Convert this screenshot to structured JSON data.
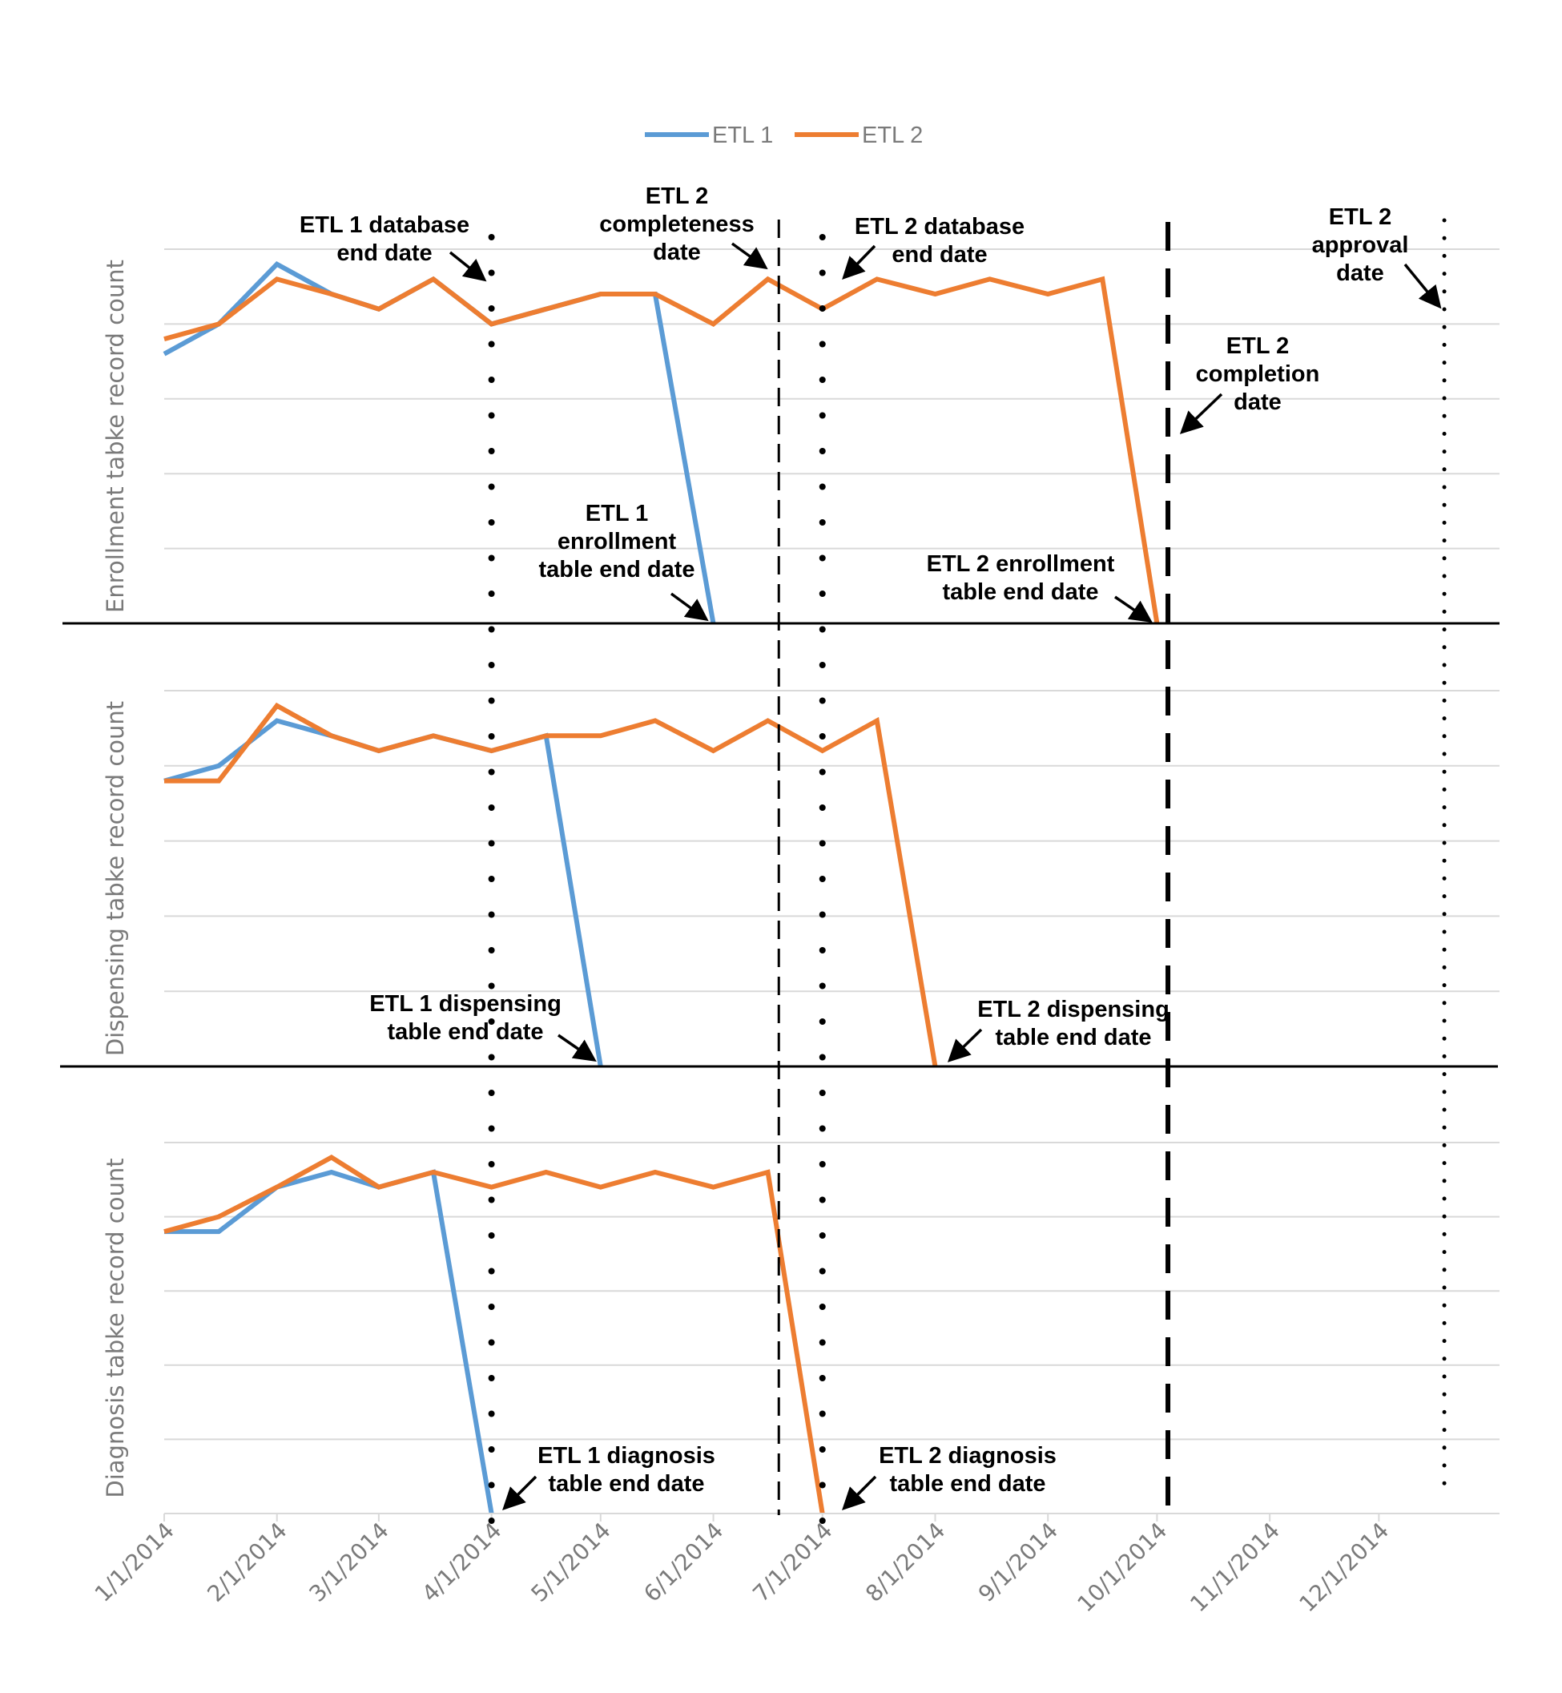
{
  "chart_data": {
    "type": "line",
    "legend": {
      "position": "top-center",
      "entries": [
        "ETL 1",
        "ETL 2"
      ]
    },
    "colors": {
      "ETL 1": "#5b9bd5",
      "ETL 2": "#ed7d31"
    },
    "x": [
      "1/1/2014",
      "1/16/2014",
      "2/1/2014",
      "2/16/2014",
      "3/1/2014",
      "3/16/2014",
      "4/1/2014",
      "4/16/2014",
      "5/1/2014",
      "5/16/2014",
      "6/1/2014",
      "6/16/2014",
      "7/1/2014",
      "7/16/2014",
      "8/1/2014",
      "8/16/2014",
      "9/1/2014",
      "9/16/2014",
      "10/1/2014"
    ],
    "x_tick_labels": [
      "1/1/2014",
      "2/1/2014",
      "3/1/2014",
      "4/1/2014",
      "5/1/2014",
      "6/1/2014",
      "7/1/2014",
      "8/1/2014",
      "9/1/2014",
      "10/1/2014",
      "11/1/2014",
      "12/1/2014"
    ],
    "panels": [
      {
        "ylabel": "Enrollment tabke record count",
        "ylim": [
          0,
          5
        ],
        "series": [
          {
            "name": "ETL 1",
            "values": [
              3.6,
              4.0,
              4.8,
              4.4,
              4.2,
              4.6,
              4.0,
              4.2,
              4.4,
              4.4,
              0.0,
              null,
              null,
              null,
              null,
              null,
              null,
              null,
              null
            ]
          },
          {
            "name": "ETL 2",
            "values": [
              3.8,
              4.0,
              4.6,
              4.4,
              4.2,
              4.6,
              4.0,
              4.2,
              4.4,
              4.4,
              4.0,
              4.6,
              4.2,
              4.6,
              4.4,
              4.6,
              4.4,
              4.6,
              0.0
            ]
          }
        ]
      },
      {
        "ylabel": "Dispensing tabke record count",
        "ylim": [
          0,
          5
        ],
        "series": [
          {
            "name": "ETL 1",
            "values": [
              3.8,
              4.0,
              4.6,
              4.4,
              4.2,
              4.4,
              4.2,
              4.4,
              0.0,
              null,
              null,
              null,
              null,
              null,
              null,
              null,
              null,
              null,
              null
            ]
          },
          {
            "name": "ETL 2",
            "values": [
              3.8,
              3.8,
              4.8,
              4.4,
              4.2,
              4.4,
              4.2,
              4.4,
              4.4,
              4.6,
              4.2,
              4.6,
              4.2,
              4.6,
              0.0,
              null,
              null,
              null,
              null
            ]
          }
        ]
      },
      {
        "ylabel": "Diagnosis tabke record count",
        "ylim": [
          0,
          5
        ],
        "series": [
          {
            "name": "ETL 1",
            "values": [
              3.8,
              3.8,
              4.4,
              4.6,
              4.4,
              4.6,
              0.0,
              null,
              null,
              null,
              null,
              null,
              null,
              null,
              null,
              null,
              null,
              null,
              null
            ]
          },
          {
            "name": "ETL 2",
            "values": [
              3.8,
              4.0,
              4.4,
              4.8,
              4.4,
              4.6,
              4.4,
              4.6,
              4.4,
              4.6,
              4.4,
              4.6,
              0.0,
              null,
              null,
              null,
              null,
              null,
              null
            ]
          }
        ]
      }
    ],
    "reference_lines": [
      {
        "x": "4/1/2014",
        "style": "large-dot"
      },
      {
        "x": "6/19/2014",
        "style": "dash"
      },
      {
        "x": "7/1/2014",
        "style": "large-dot"
      },
      {
        "x": "10/4/2014",
        "style": "long-dash"
      },
      {
        "x": "12/19/2014",
        "style": "small-dot"
      }
    ],
    "annotations": [
      {
        "lines": [
          "ETL 1 database",
          "end date"
        ]
      },
      {
        "lines": [
          "ETL 2",
          "completeness",
          "date"
        ]
      },
      {
        "lines": [
          "ETL 2 database",
          "end date"
        ]
      },
      {
        "lines": [
          "ETL 2",
          "approval",
          "date"
        ]
      },
      {
        "lines": [
          "ETL 2",
          "completion",
          "date"
        ]
      },
      {
        "lines": [
          "ETL 1",
          "enrollment",
          "table end date"
        ]
      },
      {
        "lines": [
          "ETL 2 enrollment",
          "table end date"
        ]
      },
      {
        "lines": [
          "ETL 1 dispensing",
          "table end date"
        ]
      },
      {
        "lines": [
          "ETL 2 dispensing",
          "table end date"
        ]
      },
      {
        "lines": [
          "ETL 1 diagnosis",
          "table end date"
        ]
      },
      {
        "lines": [
          "ETL 2 diagnosis",
          "table end date"
        ]
      }
    ]
  }
}
